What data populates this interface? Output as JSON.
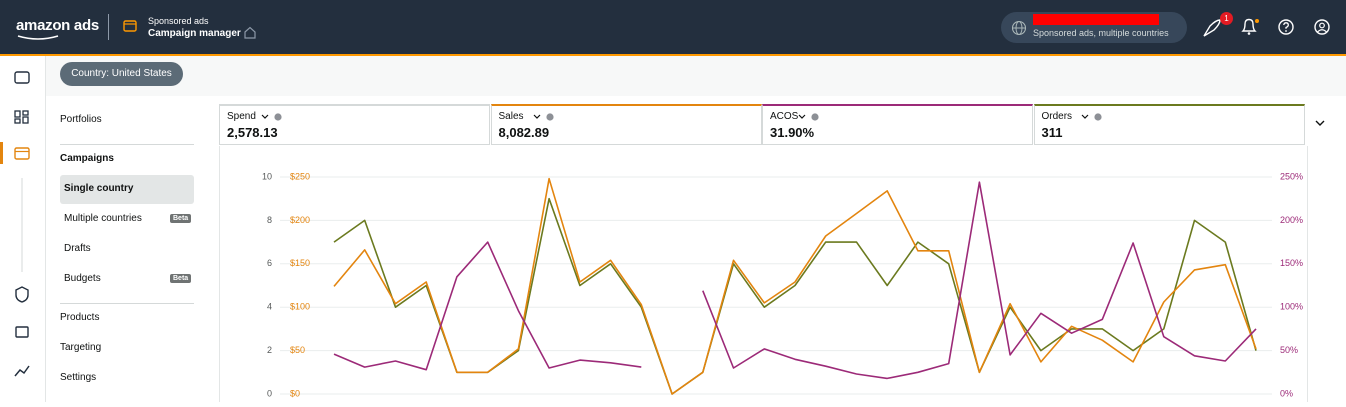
{
  "topbar": {
    "logo": "amazon ads",
    "product": "Sponsored ads",
    "section": "Campaign manager",
    "account_subtitle": "Sponsored ads, multiple countries",
    "badge": "1"
  },
  "filter": {
    "country": "Country: United States"
  },
  "sidebar": {
    "items": [
      {
        "label": "Portfolios"
      },
      {
        "label": "Campaigns",
        "header": true
      },
      {
        "label": "Single country",
        "selected": true,
        "indent": true
      },
      {
        "label": "Multiple countries",
        "badge": "Beta",
        "indent": true
      },
      {
        "label": "Drafts",
        "indent": true
      },
      {
        "label": "Budgets",
        "badge": "Beta",
        "indent": true
      },
      {
        "label": "Products"
      },
      {
        "label": "Targeting"
      },
      {
        "label": "Settings"
      }
    ]
  },
  "metrics": [
    {
      "label": "Spend",
      "value": "2,578.13",
      "color": "#d5d9d9"
    },
    {
      "label": "Sales",
      "value": "8,082.89",
      "color": "#e3850f"
    },
    {
      "label": "ACOS",
      "value": "31.90%",
      "color": "#9c2a78"
    },
    {
      "label": "Orders",
      "value": "311",
      "color": "#6b7a1f"
    }
  ],
  "chart_data": {
    "type": "line",
    "grid": true,
    "ylim": [
      0,
      10
    ],
    "yticks": [
      0,
      2,
      4,
      6,
      8,
      10
    ],
    "y2lim": [
      0,
      250
    ],
    "y2ticks": [
      {
        "value": 0,
        "label": "$0"
      },
      {
        "value": 50,
        "label": "$50"
      },
      {
        "value": 100,
        "label": "$100"
      },
      {
        "value": 150,
        "label": "$150"
      },
      {
        "value": 200,
        "label": "$200"
      },
      {
        "value": 250,
        "label": "$250"
      }
    ],
    "y3lim": [
      0,
      250
    ],
    "y3ticks": [
      {
        "value": 0,
        "label": "0%"
      },
      {
        "value": 50,
        "label": "50%"
      },
      {
        "value": 100,
        "label": "100%"
      },
      {
        "value": 150,
        "label": "150%"
      },
      {
        "value": 200,
        "label": "200%"
      },
      {
        "value": 250,
        "label": "250%"
      }
    ],
    "series": [
      {
        "name": "Orders",
        "color": "#6b7a1f",
        "axis": "y",
        "values": [
          7,
          8,
          4,
          5,
          1,
          1,
          2,
          9,
          5,
          6,
          4,
          0,
          1,
          6,
          4,
          5,
          7,
          7,
          5,
          7,
          6,
          1,
          4,
          2,
          3,
          3,
          2,
          3,
          8,
          7,
          2
        ]
      },
      {
        "name": "Sales",
        "color": "#e3850f",
        "axis": "y2",
        "values": [
          124,
          166,
          104,
          129,
          25,
          25,
          52,
          248,
          129,
          154,
          103,
          0,
          25,
          154,
          105,
          129,
          182,
          208,
          234,
          165,
          165,
          25,
          104,
          37,
          78,
          62,
          37,
          106,
          143,
          149,
          52
        ]
      },
      {
        "name": "ACOS",
        "color": "#9c2a78",
        "axis": "y3",
        "values": [
          46,
          31,
          38,
          28,
          135,
          175,
          96,
          30,
          39,
          36,
          31,
          null,
          119,
          30,
          52,
          40,
          32,
          23,
          18,
          25,
          35,
          244,
          45,
          93,
          70,
          86,
          174,
          66,
          44,
          38,
          75
        ]
      }
    ]
  }
}
